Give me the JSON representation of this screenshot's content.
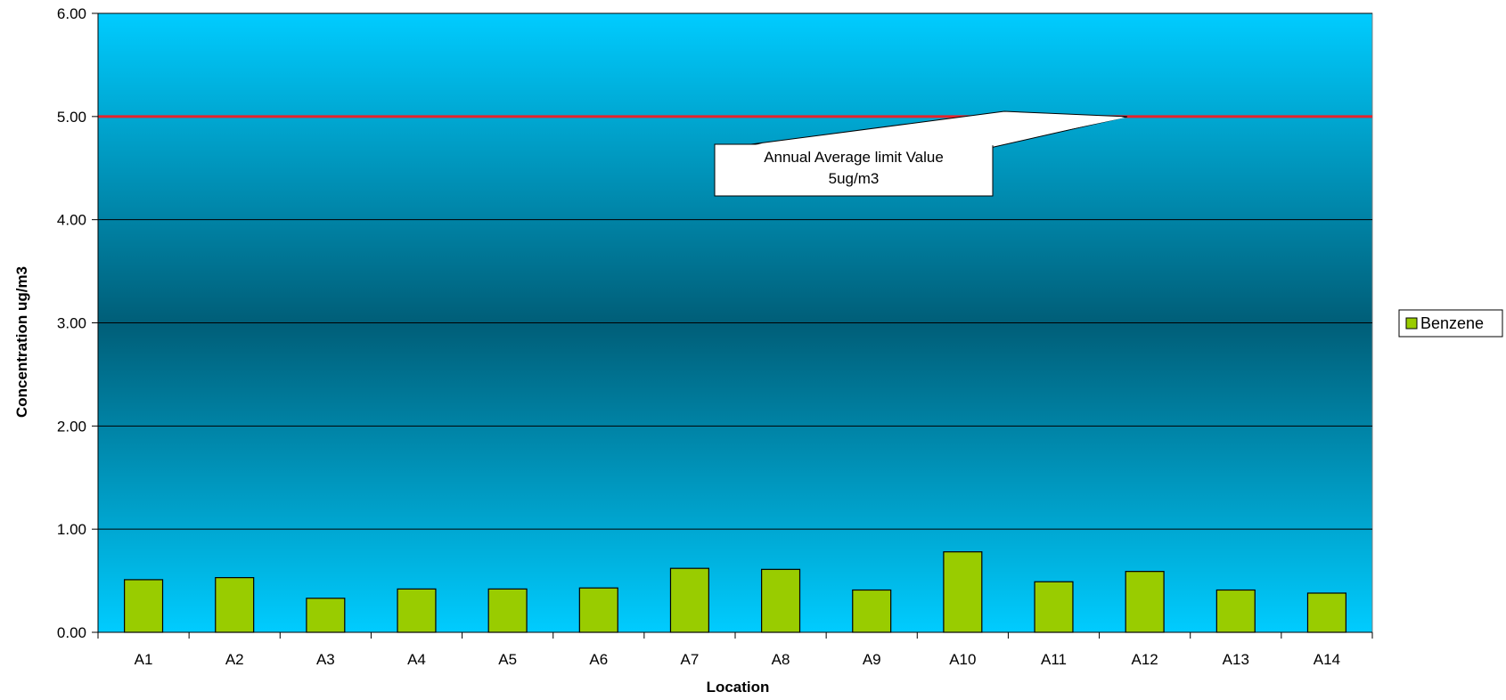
{
  "chart_data": {
    "type": "bar",
    "title": "",
    "xlabel": "Location",
    "ylabel": "Concentration ug/m3",
    "ylim": [
      0,
      6
    ],
    "yticks": [
      "0.00",
      "1.00",
      "2.00",
      "3.00",
      "4.00",
      "5.00",
      "6.00"
    ],
    "grid": true,
    "legend_position": "right",
    "categories": [
      "A1",
      "A2",
      "A3",
      "A4",
      "A5",
      "A6",
      "A7",
      "A8",
      "A9",
      "A10",
      "A11",
      "A12",
      "A13",
      "A14"
    ],
    "series": [
      {
        "name": "Benzene",
        "color": "#99cc00",
        "values": [
          0.51,
          0.53,
          0.33,
          0.42,
          0.42,
          0.43,
          0.62,
          0.61,
          0.41,
          0.78,
          0.49,
          0.59,
          0.41,
          0.38
        ]
      }
    ],
    "reference_line": {
      "value": 5.0,
      "color": "#e8222a"
    },
    "annotation": {
      "line1": "Annual Average limit Value",
      "line2": "5ug/m3"
    },
    "background": {
      "gradient_edge": "#00ccff",
      "gradient_center": "#005e78"
    }
  }
}
